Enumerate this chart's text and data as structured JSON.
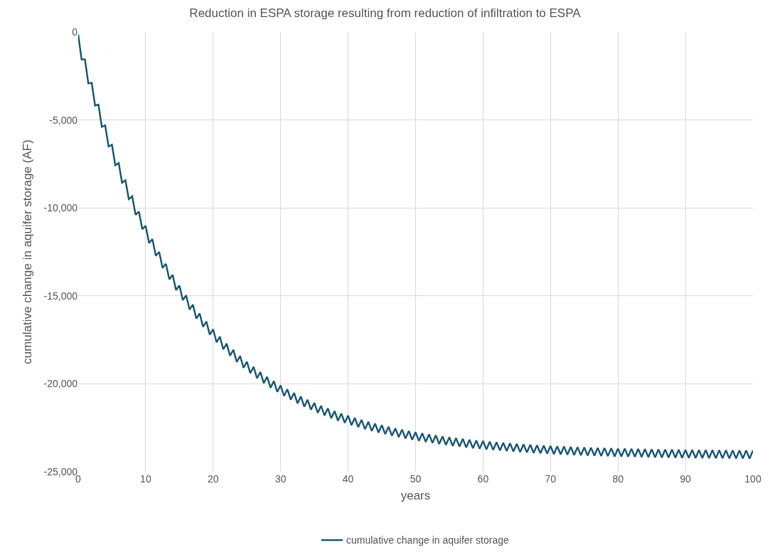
{
  "chart_data": {
    "type": "line",
    "title": "Reduction in ESPA storage resulting from reduction of infiltration to ESPA",
    "xlabel": "years",
    "ylabel": "cumulative change in aquifer storage (AF)",
    "x": [
      0,
      0.5,
      1,
      1.5,
      2,
      2.5,
      3,
      3.5,
      4,
      4.5,
      5,
      5.5,
      6,
      6.5,
      7,
      7.5,
      8,
      8.5,
      9,
      9.5,
      10,
      10.5,
      11,
      11.5,
      12,
      12.5,
      13,
      13.5,
      14,
      14.5,
      15,
      15.5,
      16,
      16.5,
      17,
      17.5,
      18,
      18.5,
      19,
      19.5,
      20,
      20.5,
      21,
      21.5,
      22,
      22.5,
      23,
      23.5,
      24,
      24.5,
      25,
      25.5,
      26,
      26.5,
      27,
      27.5,
      28,
      28.5,
      29,
      29.5,
      30,
      30.5,
      31,
      31.5,
      32,
      32.5,
      33,
      33.5,
      34,
      34.5,
      35,
      35.5,
      36,
      36.5,
      37,
      37.5,
      38,
      38.5,
      39,
      39.5,
      40,
      40.5,
      41,
      41.5,
      42,
      42.5,
      43,
      43.5,
      44,
      44.5,
      45,
      45.5,
      46,
      46.5,
      47,
      47.5,
      48,
      48.5,
      49,
      49.5,
      50,
      50.5,
      51,
      51.5,
      52,
      52.5,
      53,
      53.5,
      54,
      54.5,
      55,
      55.5,
      56,
      56.5,
      57,
      57.5,
      58,
      58.5,
      59,
      59.5,
      60,
      60.5,
      61,
      61.5,
      62,
      62.5,
      63,
      63.5,
      64,
      64.5,
      65,
      65.5,
      66,
      66.5,
      67,
      67.5,
      68,
      68.5,
      69,
      69.5,
      70,
      70.5,
      71,
      71.5,
      72,
      72.5,
      73,
      73.5,
      74,
      74.5,
      75,
      75.5,
      76,
      76.5,
      77,
      77.5,
      78,
      78.5,
      79,
      79.5,
      80,
      80.5,
      81,
      81.5,
      82,
      82.5,
      83,
      83.5,
      84,
      84.5,
      85,
      85.5,
      86,
      86.5,
      87,
      87.5,
      88,
      88.5,
      89,
      89.5,
      90,
      90.5,
      91,
      91.5,
      92,
      92.5,
      93,
      93.5,
      94,
      94.5,
      95,
      95.5,
      96,
      96.5,
      97,
      97.5,
      98,
      98.5,
      99,
      99.5,
      100
    ],
    "series": [
      {
        "name": "cumulative change in aquifer storage",
        "color": "#1f5c78",
        "values": [
          -150,
          -1560,
          -1560,
          -2920,
          -2890,
          -4180,
          -4130,
          -5390,
          -5310,
          -6510,
          -6410,
          -7570,
          -7450,
          -8570,
          -8430,
          -9500,
          -9340,
          -10390,
          -10210,
          -11210,
          -11020,
          -11990,
          -11780,
          -12720,
          -12500,
          -13410,
          -13180,
          -14060,
          -13810,
          -14670,
          -14410,
          -15240,
          -14970,
          -15780,
          -15500,
          -16290,
          -16000,
          -16760,
          -16460,
          -17210,
          -16900,
          -17640,
          -17320,
          -18040,
          -17710,
          -18400,
          -18070,
          -18760,
          -18420,
          -19090,
          -18740,
          -19390,
          -19040,
          -19690,
          -19330,
          -19960,
          -19600,
          -20220,
          -19850,
          -20460,
          -20090,
          -20690,
          -20310,
          -20900,
          -20520,
          -21110,
          -20720,
          -21300,
          -20910,
          -21470,
          -21080,
          -21650,
          -21250,
          -21800,
          -21400,
          -21950,
          -21550,
          -22100,
          -21690,
          -22220,
          -21810,
          -22350,
          -21940,
          -22460,
          -22050,
          -22580,
          -22160,
          -22680,
          -22260,
          -22770,
          -22350,
          -22860,
          -22440,
          -22950,
          -22530,
          -23030,
          -22600,
          -23110,
          -22680,
          -23180,
          -22750,
          -23240,
          -22810,
          -23300,
          -22870,
          -23360,
          -22930,
          -23420,
          -22990,
          -23470,
          -23040,
          -23530,
          -23090,
          -23570,
          -23130,
          -23620,
          -23180,
          -23660,
          -23220,
          -23690,
          -23250,
          -23730,
          -23290,
          -23760,
          -23320,
          -23790,
          -23350,
          -23820,
          -23380,
          -23850,
          -23410,
          -23880,
          -23440,
          -23900,
          -23460,
          -23930,
          -23490,
          -23950,
          -23510,
          -23970,
          -23530,
          -24000,
          -23550,
          -24010,
          -23560,
          -24030,
          -23580,
          -24050,
          -23600,
          -24060,
          -23610,
          -24080,
          -23630,
          -24090,
          -23640,
          -24100,
          -23650,
          -24110,
          -23660,
          -24130,
          -23680,
          -24130,
          -23680,
          -24140,
          -23690,
          -24150,
          -23700,
          -24160,
          -23710,
          -24170,
          -23720,
          -24180,
          -23730,
          -24190,
          -23740,
          -24190,
          -23740,
          -24200,
          -23750,
          -24210,
          -23760,
          -24210,
          -23760,
          -24220,
          -23770,
          -24220,
          -23770,
          -24220,
          -23770,
          -24230,
          -23780,
          -24230,
          -23780,
          -24240,
          -23790,
          -24240,
          -23790,
          -24240,
          -23790,
          -24250,
          -23800
        ]
      }
    ],
    "xlim": [
      0,
      100
    ],
    "xticks": [
      0,
      10,
      20,
      30,
      40,
      50,
      60,
      70,
      80,
      90,
      100
    ],
    "ylim": [
      -25000,
      0
    ],
    "yticks": [
      {
        "value": -25000,
        "label": "-25,000"
      },
      {
        "value": -20000,
        "label": "-20,000"
      },
      {
        "value": -15000,
        "label": "-15,000"
      },
      {
        "value": -10000,
        "label": "-10,000"
      },
      {
        "value": -5000,
        "label": "-5,000"
      },
      0
    ],
    "grid": true,
    "legend": "bottom",
    "marker": "none",
    "line_style": "solid"
  }
}
